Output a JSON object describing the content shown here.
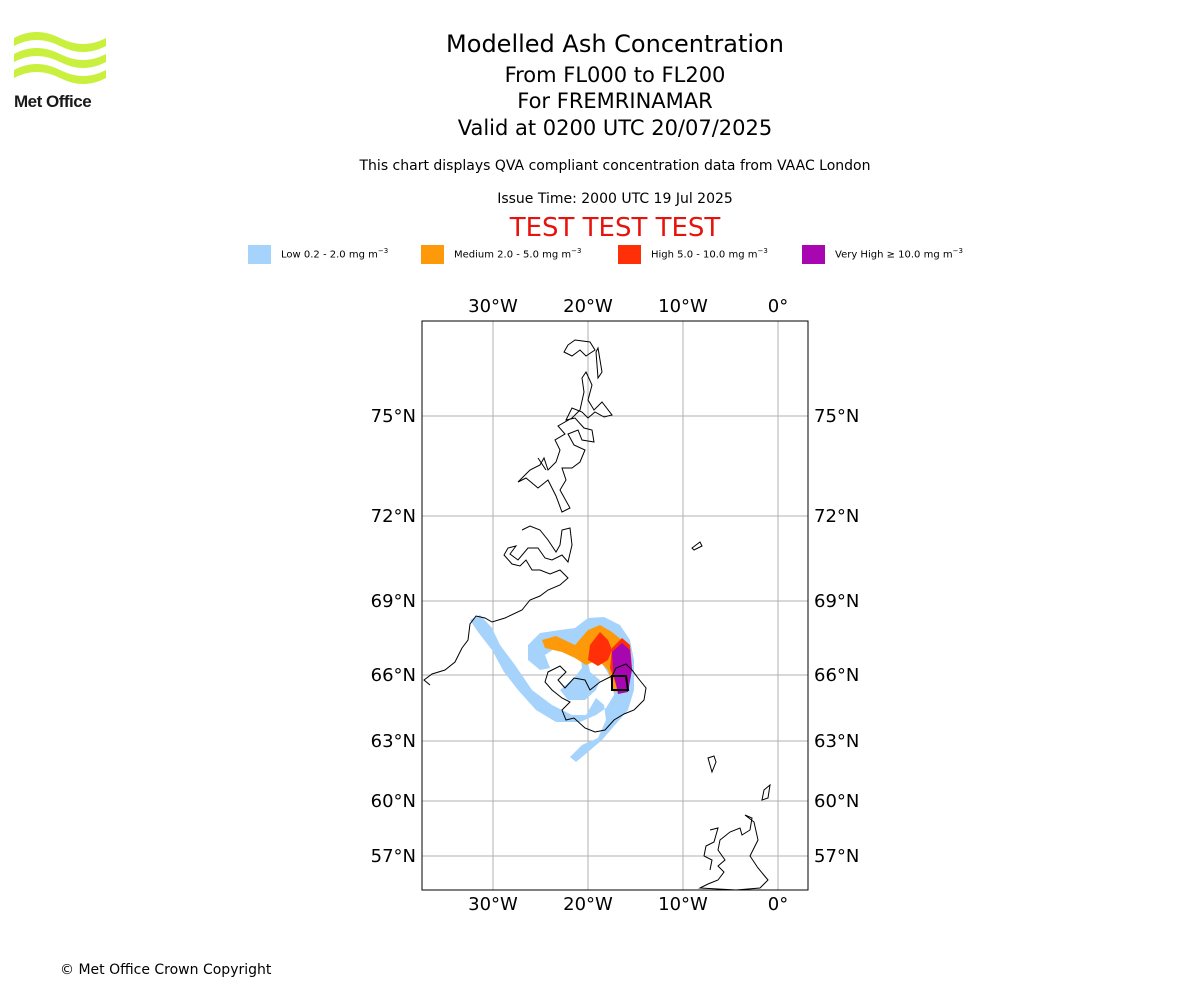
{
  "header": {
    "logo_text": "Met Office",
    "title": "Modelled Ash Concentration",
    "subtitle_levels": "From FL000 to FL200",
    "subtitle_volcano": "For FREMRINAMAR",
    "subtitle_valid": "Valid at 0200 UTC 20/07/2025",
    "info": "This chart displays QVA compliant concentration data from VAAC London",
    "issue_time": "Issue Time: 2000 UTC 19 Jul 2025",
    "test_banner": "TEST TEST TEST"
  },
  "legend": [
    {
      "label": "Low 0.2 - 2.0 mg m",
      "color": "#a6d3fb"
    },
    {
      "label": "Medium 2.0 - 5.0 mg m",
      "color": "#fe9a0a"
    },
    {
      "label": "High 5.0 - 10.0 mg m",
      "color": "#ff2f07"
    },
    {
      "label": "Very High  ≥  10.0 mg m",
      "color": "#a806b0"
    }
  ],
  "legend_unit_exponent": "−3",
  "map": {
    "lon_labels": [
      "30°W",
      "20°W",
      "10°W",
      "0°"
    ],
    "lat_labels": [
      "75°N",
      "72°N",
      "69°N",
      "66°N",
      "63°N",
      "60°N",
      "57°N"
    ],
    "grid": true,
    "coastline_color": "#000000",
    "gridline_color": "#b0b0b0"
  },
  "footer": "© Met Office Crown Copyright"
}
